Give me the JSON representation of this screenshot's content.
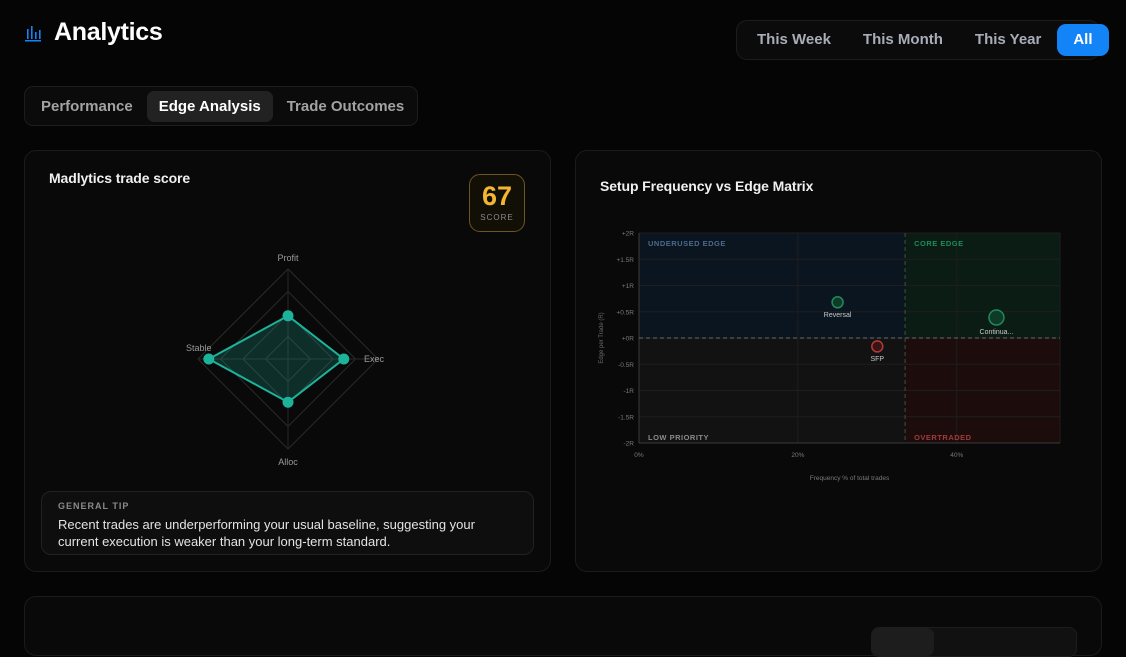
{
  "header": {
    "title": "Analytics",
    "icon": "bar-chart-icon",
    "accent": "#1284f7"
  },
  "range": {
    "options": [
      "This Week",
      "This Month",
      "This Year",
      "All"
    ],
    "selected": "All"
  },
  "tabs": {
    "items": [
      "Performance",
      "Edge Analysis",
      "Trade Outcomes"
    ],
    "selected": "Edge Analysis"
  },
  "score_card": {
    "title": "Madlytics trade score",
    "score": "67",
    "score_label": "SCORE",
    "score_color": "#f2b630",
    "radar": {
      "axes": [
        "Profit",
        "Exec",
        "Alloc",
        "Stable"
      ],
      "values": [
        0.48,
        0.62,
        0.48,
        0.88
      ],
      "color": "#1db39a"
    },
    "tip": {
      "label": "GENERAL TIP",
      "text": "Recent trades are underperforming your usual baseline, suggesting your current execution is weaker than your long-term standard."
    }
  },
  "matrix_card": {
    "title": "Setup Frequency vs Edge Matrix",
    "chart_data": {
      "type": "scatter",
      "xlabel": "Frequency % of total trades",
      "ylabel": "Edge per Trade (R)",
      "xlim": [
        0,
        53
      ],
      "ylim": [
        -2,
        2
      ],
      "xticks": [
        {
          "v": 0,
          "label": "0%"
        },
        {
          "v": 20,
          "label": "20%"
        },
        {
          "v": 40,
          "label": "40%"
        }
      ],
      "yticks": [
        {
          "v": 2,
          "label": "+2R"
        },
        {
          "v": 1.5,
          "label": "+1.5R"
        },
        {
          "v": 1,
          "label": "+1R"
        },
        {
          "v": 0.5,
          "label": "+0.5R"
        },
        {
          "v": 0,
          "label": "+0R"
        },
        {
          "v": -0.5,
          "label": "-0.5R"
        },
        {
          "v": -1,
          "label": "-1R"
        },
        {
          "v": -1.5,
          "label": "-1.5R"
        },
        {
          "v": -2,
          "label": "-2R"
        }
      ],
      "x_threshold": 33.5,
      "y_threshold": 0,
      "quadrants": [
        {
          "label": "UNDERUSED EDGE",
          "position": "top-left",
          "color": "#4a6a8a"
        },
        {
          "label": "CORE EDGE",
          "position": "top-right",
          "color": "#1f8a5a"
        },
        {
          "label": "LOW PRIORITY",
          "position": "bottom-left",
          "color": "#8a8a8a"
        },
        {
          "label": "OVERTRADED",
          "position": "bottom-right",
          "color": "#a03a3a"
        }
      ],
      "points": [
        {
          "name": "Reversal",
          "x": 25,
          "y": 0.68,
          "size": "small",
          "color": "#1f8a5a"
        },
        {
          "name": "Continua...",
          "x": 45,
          "y": 0.39,
          "size": "large",
          "color": "#1f8a5a"
        },
        {
          "name": "SFP",
          "x": 30,
          "y": -0.16,
          "size": "small",
          "color": "#b03a3a"
        }
      ]
    }
  }
}
